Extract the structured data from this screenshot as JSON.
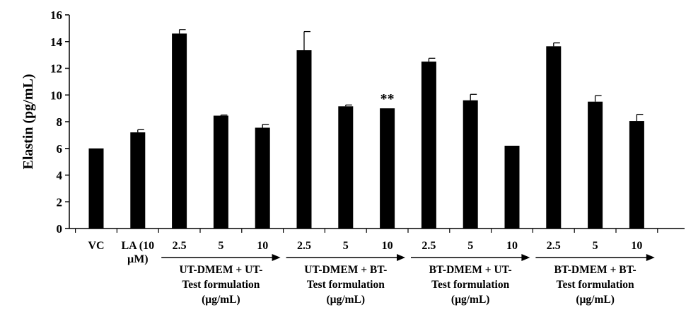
{
  "chart_data": {
    "type": "bar",
    "ylabel": "Elastin (pg/mL)",
    "xlabel": "",
    "ylim": [
      0,
      16
    ],
    "y_ticks": [
      "0",
      "2",
      "4",
      "6",
      "8",
      "10",
      "12",
      "14",
      "16"
    ],
    "grid": false,
    "legend": "none",
    "bar_color": "#000000",
    "categories": [
      {
        "label": [
          "VC"
        ],
        "value": 6.0,
        "error": 0.0
      },
      {
        "label": [
          "LA (10",
          "µM)"
        ],
        "value": 7.2,
        "error": 0.2
      },
      {
        "label": [
          "2.5"
        ],
        "value": 14.6,
        "error": 0.3
      },
      {
        "label": [
          "5"
        ],
        "value": 8.45,
        "error": 0.05
      },
      {
        "label": [
          "10"
        ],
        "value": 7.55,
        "error": 0.25
      },
      {
        "label": [
          "2.5"
        ],
        "value": 13.35,
        "error": 1.4
      },
      {
        "label": [
          "5"
        ],
        "value": 9.15,
        "error": 0.1
      },
      {
        "label": [
          "10"
        ],
        "value": 9.0,
        "error": 0.0,
        "annotation": "**"
      },
      {
        "label": [
          "2.5"
        ],
        "value": 12.5,
        "error": 0.25
      },
      {
        "label": [
          "5"
        ],
        "value": 9.6,
        "error": 0.45
      },
      {
        "label": [
          "10"
        ],
        "value": 6.2,
        "error": 0.0
      },
      {
        "label": [
          "2.5"
        ],
        "value": 13.65,
        "error": 0.25
      },
      {
        "label": [
          "5"
        ],
        "value": 9.5,
        "error": 0.45
      },
      {
        "label": [
          "10"
        ],
        "value": 8.05,
        "error": 0.5
      }
    ],
    "groups": [
      {
        "label": [
          "UT-DMEM + UT-",
          "Test formulation",
          "(µg/mL)"
        ],
        "span": [
          2,
          4
        ]
      },
      {
        "label": [
          "UT-DMEM + BT-",
          "Test formulation",
          "(µg/mL)"
        ],
        "span": [
          5,
          7
        ]
      },
      {
        "label": [
          "BT-DMEM + UT-",
          "Test formulation",
          "(µg/mL)"
        ],
        "span": [
          8,
          10
        ]
      },
      {
        "label": [
          "BT-DMEM + BT-",
          "Test formulation",
          "(µg/mL)"
        ],
        "span": [
          11,
          13
        ]
      }
    ]
  }
}
